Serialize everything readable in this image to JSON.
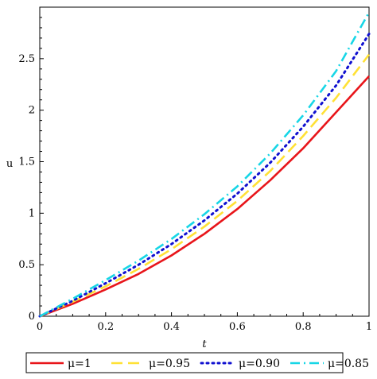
{
  "chart_data": {
    "type": "line",
    "title": "",
    "xlabel": "t",
    "ylabel": "u",
    "xlim": [
      0,
      1
    ],
    "ylim": [
      0,
      3
    ],
    "x_ticks": [
      0,
      0.2,
      0.4,
      0.6,
      0.8,
      1
    ],
    "x_tick_labels": [
      "0",
      "0.2",
      "0.4",
      "0.6",
      "0.8",
      "1"
    ],
    "y_ticks": [
      0,
      0.5,
      1,
      1.5,
      2,
      2.5
    ],
    "y_tick_labels": [
      "0",
      "0.5",
      "1",
      "1.5",
      "2",
      "2.5"
    ],
    "grid": false,
    "legend_position": "bottom",
    "x": [
      0,
      0.1,
      0.2,
      0.3,
      0.4,
      0.5,
      0.6,
      0.7,
      0.8,
      0.9,
      1.0
    ],
    "series": [
      {
        "name": "μ=1",
        "color": "#e8151a",
        "dash": "solid",
        "values": [
          0,
          0.12,
          0.26,
          0.41,
          0.59,
          0.8,
          1.04,
          1.32,
          1.63,
          1.98,
          2.33
        ]
      },
      {
        "name": "μ=0.95",
        "color": "#ffe135",
        "dash": "dash",
        "values": [
          0,
          0.14,
          0.29,
          0.46,
          0.65,
          0.87,
          1.12,
          1.41,
          1.75,
          2.12,
          2.54
        ]
      },
      {
        "name": "μ=0.90",
        "color": "#1010d0",
        "dash": "dot",
        "values": [
          0,
          0.15,
          0.32,
          0.5,
          0.7,
          0.93,
          1.19,
          1.49,
          1.84,
          2.24,
          2.74
        ]
      },
      {
        "name": "μ=0.85",
        "color": "#17d6e6",
        "dash": "dashdot",
        "values": [
          0,
          0.17,
          0.35,
          0.54,
          0.75,
          0.99,
          1.26,
          1.58,
          1.95,
          2.38,
          2.95
        ]
      }
    ]
  }
}
